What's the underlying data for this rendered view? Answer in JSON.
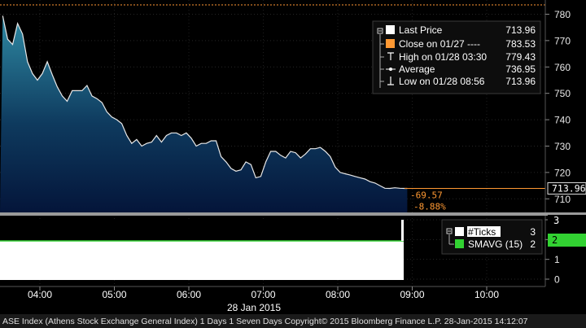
{
  "chart_data": [
    {
      "type": "area",
      "ylim": [
        705,
        784
      ],
      "y_ticks": [
        "710",
        "720",
        "730",
        "740",
        "750",
        "760",
        "770",
        "780"
      ],
      "x_ticks": [
        "04:00",
        "05:00",
        "06:00",
        "07:00",
        "08:00",
        "09:00",
        "10:00"
      ],
      "x_sub_label": "28 Jan 2015",
      "series": [
        {
          "x": [
            "03:30",
            "03:34",
            "03:38",
            "03:42",
            "03:46",
            "03:50",
            "03:54",
            "03:58",
            "04:02",
            "04:06",
            "04:10",
            "04:14",
            "04:18",
            "04:22",
            "04:26",
            "04:30",
            "04:34",
            "04:38",
            "04:42",
            "04:46",
            "04:50",
            "04:54",
            "04:58",
            "05:02",
            "05:06",
            "05:10",
            "05:14",
            "05:18",
            "05:22",
            "05:26",
            "05:30",
            "05:34",
            "05:38",
            "05:42",
            "05:46",
            "05:50",
            "05:54",
            "05:58",
            "06:02",
            "06:06",
            "06:10",
            "06:14",
            "06:18",
            "06:22",
            "06:26",
            "06:30",
            "06:34",
            "06:38",
            "06:42",
            "06:46",
            "06:50",
            "06:54",
            "06:58",
            "07:02",
            "07:06",
            "07:10",
            "07:14",
            "07:18",
            "07:22",
            "07:26",
            "07:30",
            "07:34",
            "07:38",
            "07:42",
            "07:46",
            "07:50",
            "07:54",
            "07:58",
            "08:02",
            "08:06",
            "08:10",
            "08:14",
            "08:18",
            "08:22",
            "08:26",
            "08:30",
            "08:34",
            "08:38",
            "08:42",
            "08:46",
            "08:50",
            "08:54",
            "08:56"
          ],
          "values": [
            779.4,
            770.5,
            768.5,
            776.5,
            772.5,
            762,
            757.5,
            755,
            757.5,
            762,
            757,
            752.5,
            749,
            747,
            751,
            751,
            751,
            753,
            749,
            748,
            746.5,
            743,
            741,
            740,
            738.5,
            734,
            731,
            732.5,
            730,
            731,
            731.5,
            734,
            731.5,
            734,
            735,
            735,
            734,
            735,
            733,
            730,
            731,
            731,
            732,
            732,
            726,
            724,
            721.5,
            720.5,
            721,
            724,
            723,
            718,
            718.5,
            724,
            728,
            728,
            726.5,
            725.5,
            728,
            727.5,
            725.5,
            727,
            729,
            729,
            729.5,
            728,
            726,
            722,
            720,
            719.5,
            719,
            718.5,
            718,
            717.5,
            716.5,
            716,
            715,
            714,
            713.96,
            714.2,
            714,
            713.96,
            713.96
          ]
        }
      ]
    },
    {
      "type": "bar",
      "ylim": [
        0,
        3
      ],
      "y_ticks": [
        "0",
        "1",
        "2",
        "3"
      ],
      "series": [
        {
          "name": "#Ticks",
          "value": 3
        },
        {
          "name": "SMAVG (15)",
          "value": 2
        }
      ]
    }
  ],
  "legend": {
    "rows": [
      {
        "marker": "white-box",
        "label": "Last Price",
        "value": "713.96"
      },
      {
        "marker": "orange-box",
        "label": "Close on 01/27  ----",
        "value": "783.53"
      },
      {
        "marker": "high-tick",
        "label": "High on 01/28 03:30",
        "value": "779.43"
      },
      {
        "marker": "avg-dot",
        "label": "Average",
        "value": "736.95"
      },
      {
        "marker": "low-tick",
        "label": "Low on 01/28 08:56",
        "value": "713.96"
      }
    ]
  },
  "price_flag": "713.96",
  "change_label": "-69.57",
  "change_pct_fragment": "-8.88%",
  "volume_legend": {
    "rows": [
      {
        "marker": "white-box",
        "label": "#Ticks",
        "value": "3"
      },
      {
        "marker": "green-box",
        "label": "SMAVG (15)",
        "value": "2"
      }
    ]
  },
  "volume_flags": [
    "3",
    "2"
  ],
  "footer": "ASE Index (Athens Stock Exchange General Index) 1 Days 1 Seven Days  Copyright© 2015 Bloomberg Finance L.P.  28-Jan-2015 14:12:07",
  "colors": {
    "close_line": "#ff9933",
    "area_top": "#2f8aa3",
    "area_bottom": "#04153a",
    "smavg": "#32d232",
    "panel_bg": "#0a0a0a"
  }
}
